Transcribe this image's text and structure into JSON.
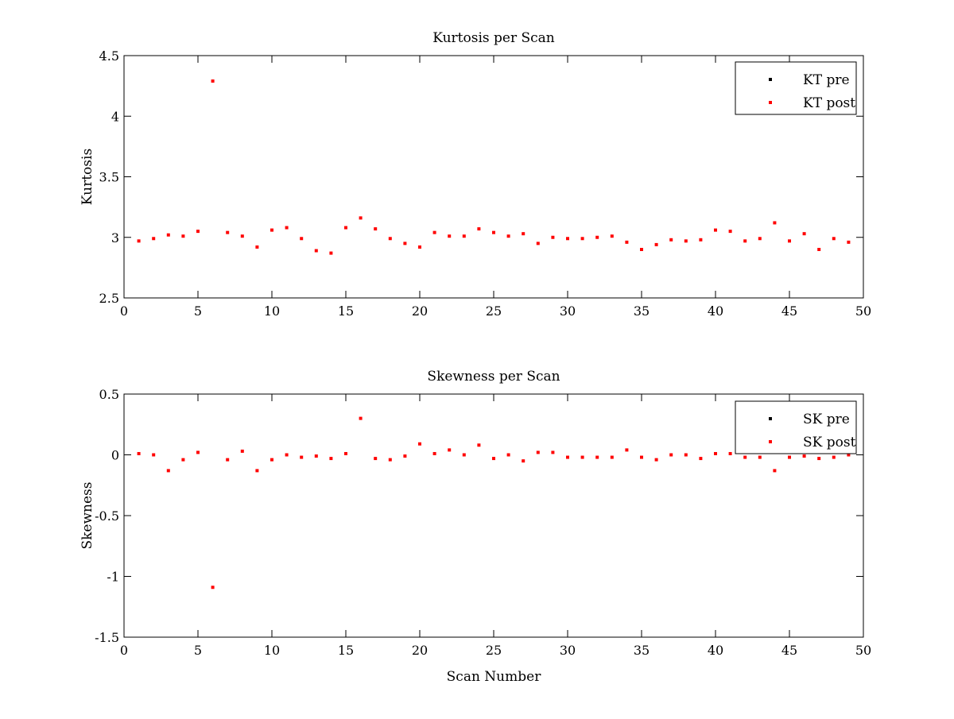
{
  "chart_data": [
    {
      "type": "scatter",
      "title": "Kurtosis per Scan",
      "xlabel": "",
      "ylabel": "Kurtosis",
      "xlim": [
        0,
        50
      ],
      "ylim": [
        2.5,
        4.5
      ],
      "xticks": [
        0,
        5,
        10,
        15,
        20,
        25,
        30,
        35,
        40,
        45,
        50
      ],
      "yticks": [
        2.5,
        3,
        3.5,
        4,
        4.5
      ],
      "xtick_labels": [
        "0",
        "5",
        "10",
        "15",
        "20",
        "25",
        "30",
        "35",
        "40",
        "45",
        "50"
      ],
      "ytick_labels": [
        "2.5",
        "3",
        "3.5",
        "4",
        "4.5"
      ],
      "grid": false,
      "legend_position": "top-right",
      "series": [
        {
          "name": "KT pre",
          "color": "#000000",
          "marker": "dot",
          "x": [],
          "y": []
        },
        {
          "name": "KT post",
          "color": "#ff0000",
          "marker": "dot",
          "x": [
            1,
            2,
            3,
            4,
            5,
            6,
            7,
            8,
            9,
            10,
            11,
            12,
            13,
            14,
            15,
            16,
            17,
            18,
            19,
            20,
            21,
            22,
            23,
            24,
            25,
            26,
            27,
            28,
            29,
            30,
            31,
            32,
            33,
            34,
            35,
            36,
            37,
            38,
            39,
            40,
            41,
            42,
            43,
            44,
            45,
            46,
            47,
            48,
            49
          ],
          "y": [
            2.97,
            2.99,
            3.02,
            3.01,
            3.05,
            4.29,
            3.04,
            3.01,
            2.92,
            3.06,
            3.08,
            2.99,
            2.89,
            2.87,
            3.08,
            3.16,
            3.07,
            2.99,
            2.95,
            2.92,
            3.04,
            3.01,
            3.01,
            3.07,
            3.04,
            3.01,
            3.03,
            2.95,
            3.0,
            2.99,
            2.99,
            3.0,
            3.01,
            2.96,
            2.9,
            2.94,
            2.98,
            2.97,
            2.98,
            3.06,
            3.05,
            2.97,
            2.99,
            3.12,
            2.97,
            3.03,
            2.9,
            2.99,
            2.96
          ]
        }
      ]
    },
    {
      "type": "scatter",
      "title": "Skewness per Scan",
      "xlabel": "Scan Number",
      "ylabel": "Skewness",
      "xlim": [
        0,
        50
      ],
      "ylim": [
        -1.5,
        0.5
      ],
      "xticks": [
        0,
        5,
        10,
        15,
        20,
        25,
        30,
        35,
        40,
        45,
        50
      ],
      "yticks": [
        -1.5,
        -1,
        -0.5,
        0,
        0.5
      ],
      "xtick_labels": [
        "0",
        "5",
        "10",
        "15",
        "20",
        "25",
        "30",
        "35",
        "40",
        "45",
        "50"
      ],
      "ytick_labels": [
        "-1.5",
        "-1",
        "-0.5",
        "0",
        "0.5"
      ],
      "grid": false,
      "legend_position": "top-right",
      "series": [
        {
          "name": "SK pre",
          "color": "#000000",
          "marker": "dot",
          "x": [],
          "y": []
        },
        {
          "name": "SK post",
          "color": "#ff0000",
          "marker": "dot",
          "x": [
            1,
            2,
            3,
            4,
            5,
            6,
            7,
            8,
            9,
            10,
            11,
            12,
            13,
            14,
            15,
            16,
            17,
            18,
            19,
            20,
            21,
            22,
            23,
            24,
            25,
            26,
            27,
            28,
            29,
            30,
            31,
            32,
            33,
            34,
            35,
            36,
            37,
            38,
            39,
            40,
            41,
            42,
            43,
            44,
            45,
            46,
            47,
            48,
            49
          ],
          "y": [
            0.01,
            0.0,
            -0.13,
            -0.04,
            0.02,
            -1.09,
            -0.04,
            0.03,
            -0.13,
            -0.04,
            0.0,
            -0.02,
            -0.01,
            -0.03,
            0.01,
            0.3,
            -0.03,
            -0.04,
            -0.01,
            0.09,
            0.01,
            0.04,
            0.0,
            0.08,
            -0.03,
            0.0,
            -0.05,
            0.02,
            0.02,
            -0.02,
            -0.02,
            -0.02,
            -0.02,
            0.04,
            -0.02,
            -0.04,
            0.0,
            0.0,
            -0.03,
            0.01,
            0.01,
            -0.02,
            -0.02,
            -0.13,
            -0.02,
            -0.01,
            -0.03,
            -0.02,
            0.0
          ]
        }
      ]
    }
  ]
}
